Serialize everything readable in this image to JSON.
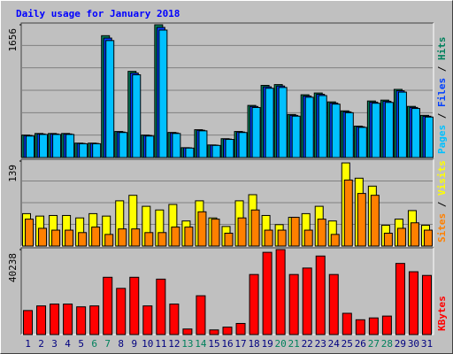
{
  "chart_data": {
    "type": "bar",
    "title": "Daily usage for January 2018",
    "categories": [
      "1",
      "2",
      "3",
      "4",
      "5",
      "6",
      "7",
      "8",
      "9",
      "10",
      "11",
      "12",
      "13",
      "14",
      "15",
      "16",
      "17",
      "18",
      "19",
      "20",
      "21",
      "22",
      "23",
      "24",
      "25",
      "26",
      "27",
      "28",
      "29",
      "30",
      "31"
    ],
    "highlight_indices": [
      5,
      6,
      12,
      13,
      19,
      20,
      26,
      27
    ],
    "label_color": "#000080",
    "highlight_color": "#00805c",
    "panels": [
      {
        "ylim": [
          0,
          1656
        ],
        "yticks": [
          1656
        ],
        "grid": true,
        "series": [
          {
            "name": "Hits",
            "color": "#00805c",
            "values": [
              280,
              300,
              300,
              300,
              180,
              180,
              1520,
              325,
              1075,
              280,
              1656,
              313,
              123,
              347,
              157,
              235,
              325,
              650,
              900,
              910,
              537,
              783,
              805,
              694,
              582,
              392,
              705,
              716,
              850,
              638,
              526
            ]
          },
          {
            "name": "Files",
            "color": "#0040ff",
            "values": [
              274,
              294,
              294,
              294,
              176,
              176,
              1490,
              318,
              1054,
              274,
              1623,
              307,
              121,
              340,
              154,
              230,
              318,
              637,
              882,
              892,
              526,
              767,
              789,
              680,
              570,
              384,
              691,
              702,
              833,
              625,
              515
            ]
          },
          {
            "name": "Pages",
            "color": "#00c0ff",
            "values": [
              268,
              288,
              288,
              288,
              172,
              172,
              1459,
              312,
              1032,
              268,
              1590,
              300,
              118,
              333,
              151,
              226,
              312,
              624,
              864,
              874,
              516,
              752,
              773,
              666,
              559,
              376,
              677,
              687,
              816,
              612,
              505
            ]
          }
        ]
      },
      {
        "ylim": [
          0,
          139
        ],
        "yticks": [
          139
        ],
        "grid": true,
        "series": [
          {
            "name": "Visits",
            "color": "#ffff00",
            "values": [
              53,
              49,
              50,
              50,
              46,
              53,
              49,
              74,
              83,
              65,
              59,
              68,
              41,
              74,
              46,
              32,
              74,
              84,
              50,
              35,
              47,
              53,
              65,
              41,
              136,
              111,
              98,
              34,
              44,
              58,
              34
            ]
          },
          {
            "name": "Sites",
            "color": "#ff8000",
            "values": [
              44,
              29,
              26,
              26,
              22,
              31,
              19,
              28,
              28,
              22,
              22,
              31,
              31,
              56,
              44,
              21,
              46,
              59,
              26,
              26,
              47,
              26,
              44,
              19,
              108,
              86,
              83,
              21,
              29,
              38,
              26
            ]
          }
        ]
      },
      {
        "ylim": [
          0,
          40238
        ],
        "yticks": [
          40238
        ],
        "grid": false,
        "series": [
          {
            "name": "KBytes",
            "color": "#ff0000",
            "values": [
              11370,
              13560,
              14430,
              14430,
              13120,
              13560,
              27120,
              21870,
              27120,
              13560,
              26240,
              14430,
              2620,
              18370,
              2190,
              3500,
              5250,
              28430,
              38930,
              40238,
              28430,
              31490,
              37180,
              28430,
              10060,
              7000,
              7870,
              8750,
              33680,
              29740,
              27990
            ]
          }
        ]
      }
    ]
  }
}
